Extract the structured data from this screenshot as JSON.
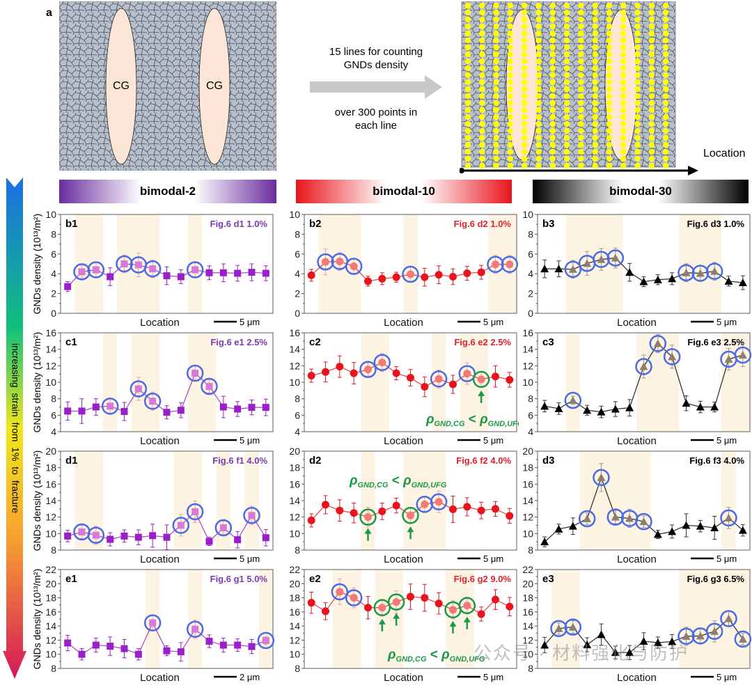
{
  "panel_a": {
    "label": "a",
    "cg_labels": [
      "CG",
      "CG"
    ],
    "arrow_text_top": [
      "15 lines for counting",
      "GNDs density"
    ],
    "arrow_text_bottom": [
      "over 300 points in",
      "each line"
    ],
    "axis_label": "Location"
  },
  "strain_arrow": {
    "text": "increasing  strain  from  1%  to  fracture"
  },
  "headers": [
    {
      "label": "bimodal-2",
      "color": "#6a2c9e"
    },
    {
      "label": "bimodal-10",
      "color": "#e8141b"
    },
    {
      "label": "bimodal-30",
      "color": "#000000"
    }
  ],
  "annotation_text": {
    "left": "ρ",
    "sub1": "GND,CG",
    "lt": "<",
    "sub2": "GND,UFG"
  },
  "watermark": "公众号 · 材料强化与防护",
  "chart_data": [
    {
      "id": "b1",
      "type": "line",
      "series_name": "bimodal-2",
      "title": "Fig.6 d1  1.0%",
      "xlabel": "Location",
      "ylabel": "GNDs density (10¹³/m²)",
      "ylim": [
        0,
        10
      ],
      "yticks": [
        0,
        2,
        4,
        6,
        8,
        10
      ],
      "scale_bar": "5 μm",
      "marker": "square",
      "color": "#9b1fc9",
      "values": [
        2.7,
        4.2,
        4.4,
        3.7,
        5.0,
        4.9,
        4.5,
        3.8,
        3.7,
        4.4,
        4.1,
        4.1,
        4.05,
        4.15,
        4.05
      ],
      "errors": [
        0.5,
        0.6,
        0.8,
        0.9,
        0.9,
        1.2,
        0.9,
        0.9,
        0.7,
        0.7,
        0.7,
        0.9,
        0.8,
        0.85,
        0.75
      ],
      "cg_regions": [
        [
          1,
          2
        ],
        [
          4,
          6
        ],
        [
          9,
          9
        ]
      ],
      "blue_circled": [
        1,
        2,
        4,
        5,
        6,
        9
      ],
      "green_circled": [],
      "arrows": []
    },
    {
      "id": "b2",
      "type": "line",
      "series_name": "bimodal-10",
      "title": "Fig.6 d2  1.0%",
      "xlabel": "Location",
      "ylabel": "",
      "ylim": [
        0,
        10
      ],
      "yticks": [
        0,
        2,
        4,
        6,
        8,
        10
      ],
      "scale_bar": "5 μm",
      "marker": "circle",
      "color": "#e8141b",
      "values": [
        3.85,
        5.2,
        5.25,
        4.75,
        3.25,
        3.5,
        3.65,
        3.95,
        3.65,
        3.9,
        3.7,
        4.05,
        4.15,
        4.95,
        4.95
      ],
      "errors": [
        0.6,
        1.3,
        0.9,
        0.8,
        0.5,
        0.6,
        0.5,
        0.8,
        0.9,
        0.9,
        0.8,
        0.7,
        0.7,
        0.9,
        0.9
      ],
      "cg_regions": [
        [
          1,
          3
        ],
        [
          7,
          7
        ],
        [
          13,
          14
        ]
      ],
      "blue_circled": [
        1,
        2,
        3,
        7,
        13,
        14
      ],
      "green_circled": [],
      "arrows": []
    },
    {
      "id": "b3",
      "type": "line",
      "series_name": "bimodal-30",
      "title": "Fig.6 d3  1.0%",
      "xlabel": "Location",
      "ylabel": "",
      "ylim": [
        0,
        10
      ],
      "yticks": [
        0,
        2,
        4,
        6,
        8,
        10
      ],
      "scale_bar": "5 μm",
      "marker": "triangle",
      "color": "#000000",
      "values": [
        4.5,
        4.5,
        4.45,
        5.05,
        5.45,
        5.6,
        4.15,
        3.2,
        3.4,
        3.5,
        4.1,
        4.05,
        4.25,
        3.25,
        3.1
      ],
      "errors": [
        0.9,
        0.8,
        0.9,
        1.2,
        1.1,
        1.0,
        0.9,
        0.5,
        0.5,
        0.6,
        0.9,
        0.8,
        0.9,
        0.5,
        0.7
      ],
      "cg_regions": [
        [
          2,
          5
        ],
        [
          10,
          12
        ]
      ],
      "blue_circled": [
        2,
        3,
        4,
        5,
        10,
        11,
        12
      ],
      "green_circled": [],
      "arrows": []
    },
    {
      "id": "c1",
      "type": "line",
      "series_name": "bimodal-2",
      "title": "Fig.6 e1  2.5%",
      "xlabel": "Location",
      "ylabel": "GNDs density (10¹³/m²)",
      "ylim": [
        4,
        16
      ],
      "yticks": [
        4,
        6,
        8,
        10,
        12,
        14,
        16
      ],
      "scale_bar": "5 μm",
      "marker": "square",
      "color": "#9b1fc9",
      "values": [
        6.5,
        6.5,
        7.0,
        7.1,
        6.45,
        9.2,
        7.7,
        6.35,
        6.6,
        11.1,
        9.5,
        7.0,
        6.75,
        6.95,
        6.95
      ],
      "errors": [
        1.1,
        1.5,
        1.0,
        1.0,
        1.1,
        1.4,
        1.1,
        0.8,
        0.9,
        0.9,
        0.8,
        1.3,
        0.9,
        0.9,
        1.0
      ],
      "cg_regions": [
        [
          3,
          3
        ],
        [
          5,
          6
        ],
        [
          9,
          10
        ]
      ],
      "blue_circled": [
        3,
        5,
        6,
        9,
        10
      ],
      "green_circled": [],
      "arrows": []
    },
    {
      "id": "c2",
      "type": "line",
      "series_name": "bimodal-10",
      "title": "Fig.6 e2  2.5%",
      "xlabel": "Location",
      "ylabel": "",
      "ylim": [
        4,
        16
      ],
      "yticks": [
        4,
        6,
        8,
        10,
        12,
        14,
        16
      ],
      "scale_bar": "5 μm",
      "marker": "circle",
      "color": "#e8141b",
      "values": [
        10.8,
        11.25,
        11.9,
        11.1,
        11.55,
        12.4,
        11.1,
        10.55,
        9.45,
        10.4,
        9.75,
        11.05,
        10.35,
        10.7,
        10.3
      ],
      "errors": [
        0.8,
        1.2,
        1.3,
        1.3,
        0.8,
        1.1,
        0.8,
        1.0,
        1.2,
        1.1,
        1.1,
        1.3,
        0.9,
        1.3,
        0.9
      ],
      "cg_regions": [
        [
          4,
          5
        ],
        [
          9,
          9
        ],
        [
          11,
          12
        ]
      ],
      "blue_circled": [
        4,
        5,
        9,
        11
      ],
      "green_circled": [
        12
      ],
      "arrows": [
        12
      ]
    },
    {
      "id": "c3",
      "type": "line",
      "series_name": "bimodal-30",
      "title": "Fig.6 e3  2.5%",
      "xlabel": "Location",
      "ylabel": "",
      "ylim": [
        4,
        16
      ],
      "yticks": [
        4,
        6,
        8,
        10,
        12,
        14,
        16
      ],
      "scale_bar": "5 μm",
      "marker": "triangle",
      "color": "#000000",
      "values": [
        7.1,
        6.8,
        7.8,
        6.6,
        6.4,
        6.75,
        6.9,
        11.9,
        14.7,
        13.1,
        7.45,
        7.0,
        7.0,
        12.8,
        13.3
      ],
      "errors": [
        0.7,
        0.7,
        0.5,
        0.6,
        0.7,
        0.9,
        1.0,
        1.4,
        1.1,
        1.4,
        0.9,
        0.7,
        0.6,
        1.3,
        1.4
      ],
      "cg_regions": [
        [
          2,
          2
        ],
        [
          7,
          9
        ],
        [
          13,
          14
        ]
      ],
      "blue_circled": [
        2,
        7,
        8,
        9,
        13,
        14
      ],
      "green_circled": [],
      "arrows": []
    },
    {
      "id": "d1",
      "type": "line",
      "series_name": "bimodal-2",
      "title": "Fig.6 f1  4.0%",
      "xlabel": "Location",
      "ylabel": "GNDs density (10¹³/m²)",
      "ylim": [
        8,
        20
      ],
      "yticks": [
        8,
        10,
        12,
        14,
        16,
        18,
        20
      ],
      "scale_bar": "5 μm",
      "marker": "square",
      "color": "#9b1fc9",
      "values": [
        9.7,
        10.2,
        9.8,
        9.3,
        9.7,
        9.55,
        9.75,
        9.55,
        11.0,
        12.65,
        9.05,
        10.7,
        9.25,
        12.2,
        9.5
      ],
      "errors": [
        0.7,
        0.8,
        1.1,
        0.8,
        0.75,
        0.9,
        1.4,
        1.5,
        1.3,
        1.3,
        0.5,
        0.8,
        1.0,
        1.1,
        1.0
      ],
      "cg_regions": [
        [
          1,
          2
        ],
        [
          8,
          9
        ],
        [
          11,
          11
        ],
        [
          13,
          13
        ]
      ],
      "blue_circled": [
        1,
        2,
        8,
        9,
        11,
        13
      ],
      "green_circled": [],
      "arrows": []
    },
    {
      "id": "d2",
      "type": "line",
      "series_name": "bimodal-10",
      "title": "Fig.6 f2  4.0%",
      "xlabel": "Location",
      "ylabel": "",
      "ylim": [
        8,
        20
      ],
      "yticks": [
        8,
        10,
        12,
        14,
        16,
        18,
        20
      ],
      "scale_bar": "5 μm",
      "marker": "circle",
      "color": "#e8141b",
      "values": [
        11.6,
        13.5,
        12.8,
        12.5,
        12.0,
        12.7,
        13.4,
        12.2,
        13.55,
        13.85,
        12.95,
        13.25,
        12.8,
        13.0,
        12.15
      ],
      "errors": [
        0.8,
        1.1,
        1.3,
        1.2,
        1.2,
        1.0,
        0.9,
        1.0,
        1.0,
        1.3,
        1.6,
        1.1,
        1.0,
        0.9,
        0.9
      ],
      "cg_regions": [
        [
          4,
          4
        ],
        [
          7,
          9
        ]
      ],
      "blue_circled": [
        8,
        9
      ],
      "green_circled": [
        4,
        7
      ],
      "arrows": [
        4,
        7
      ]
    },
    {
      "id": "d3",
      "type": "line",
      "series_name": "bimodal-30",
      "title": "Fig.6 f3  4.0%",
      "xlabel": "Location",
      "ylabel": "",
      "ylim": [
        8,
        20
      ],
      "yticks": [
        8,
        10,
        12,
        14,
        16,
        18,
        20
      ],
      "scale_bar": "5 μm",
      "marker": "triangle",
      "color": "#000000",
      "values": [
        9.0,
        10.55,
        10.9,
        11.8,
        16.8,
        12.0,
        11.85,
        11.45,
        9.9,
        10.25,
        11.0,
        10.9,
        10.7,
        11.9,
        10.4
      ],
      "errors": [
        0.6,
        0.6,
        1.0,
        0.7,
        1.7,
        0.8,
        1.1,
        0.7,
        0.5,
        0.8,
        1.4,
        0.7,
        1.4,
        1.3,
        0.7
      ],
      "cg_regions": [
        [
          3,
          7
        ],
        [
          13,
          13
        ]
      ],
      "blue_circled": [
        3,
        4,
        5,
        6,
        7,
        13
      ],
      "green_circled": [],
      "arrows": []
    },
    {
      "id": "e1",
      "type": "line",
      "series_name": "bimodal-2",
      "title": "Fig.6 g1  5.0%",
      "xlabel": "Location",
      "ylabel": "GNDs density (10¹³/m²)",
      "ylim": [
        8,
        22
      ],
      "yticks": [
        8,
        10,
        12,
        14,
        16,
        18,
        20,
        22
      ],
      "scale_bar": "2 μm",
      "marker": "square",
      "color": "#9b1fc9",
      "values": [
        11.6,
        10.0,
        11.3,
        11.15,
        10.8,
        10.0,
        14.45,
        10.5,
        10.35,
        13.55,
        11.85,
        11.3,
        11.3,
        11.1,
        11.95
      ],
      "errors": [
        1.1,
        0.8,
        1.0,
        1.3,
        1.3,
        0.8,
        1.1,
        0.7,
        1.3,
        1.3,
        0.9,
        1.0,
        0.9,
        1.0,
        0.6
      ],
      "cg_regions": [
        [
          6,
          6
        ],
        [
          9,
          9
        ],
        [
          14,
          14
        ]
      ],
      "blue_circled": [
        6,
        9,
        14
      ],
      "green_circled": [],
      "arrows": []
    },
    {
      "id": "e2",
      "type": "line",
      "series_name": "bimodal-10",
      "title": "Fig.6 g2  9.0%",
      "xlabel": "Location",
      "ylabel": "",
      "ylim": [
        8,
        22
      ],
      "yticks": [
        8,
        10,
        12,
        14,
        16,
        18,
        20,
        22
      ],
      "scale_bar": "5 μm",
      "marker": "circle",
      "color": "#e8141b",
      "values": [
        17.3,
        16.1,
        18.85,
        18.0,
        16.6,
        16.6,
        17.4,
        18.15,
        18.0,
        17.2,
        16.3,
        16.9,
        15.7,
        17.75,
        16.75
      ],
      "errors": [
        1.5,
        1.2,
        1.8,
        1.4,
        1.6,
        1.2,
        1.6,
        1.8,
        1.9,
        1.5,
        1.3,
        1.2,
        1.0,
        1.4,
        1.3
      ],
      "cg_regions": [
        [
          2,
          3
        ],
        [
          5,
          6
        ],
        [
          10,
          11
        ]
      ],
      "blue_circled": [
        2,
        3
      ],
      "green_circled": [
        5,
        6,
        10,
        11
      ],
      "arrows": [
        5,
        6,
        10,
        11
      ]
    },
    {
      "id": "e3",
      "type": "line",
      "series_name": "bimodal-30",
      "title": "Fig.6 g3  6.5%",
      "xlabel": "Location",
      "ylabel": "",
      "ylim": [
        8,
        22
      ],
      "yticks": [
        8,
        10,
        12,
        14,
        16,
        18,
        20,
        22
      ],
      "scale_bar": "5 μm",
      "marker": "triangle",
      "color": "#000000",
      "values": [
        11.3,
        13.65,
        13.85,
        11.35,
        12.8,
        10.25,
        10.25,
        11.85,
        11.65,
        11.8,
        12.55,
        12.6,
        13.25,
        15.05,
        12.15
      ],
      "errors": [
        1.1,
        0.8,
        0.9,
        1.0,
        1.5,
        0.9,
        1.0,
        1.2,
        0.8,
        1.0,
        1.3,
        1.1,
        1.5,
        1.1,
        0.8
      ],
      "cg_regions": [
        [
          1,
          2
        ],
        [
          10,
          14
        ]
      ],
      "blue_circled": [
        1,
        2,
        10,
        11,
        12,
        13,
        14
      ],
      "green_circled": [],
      "arrows": []
    }
  ]
}
